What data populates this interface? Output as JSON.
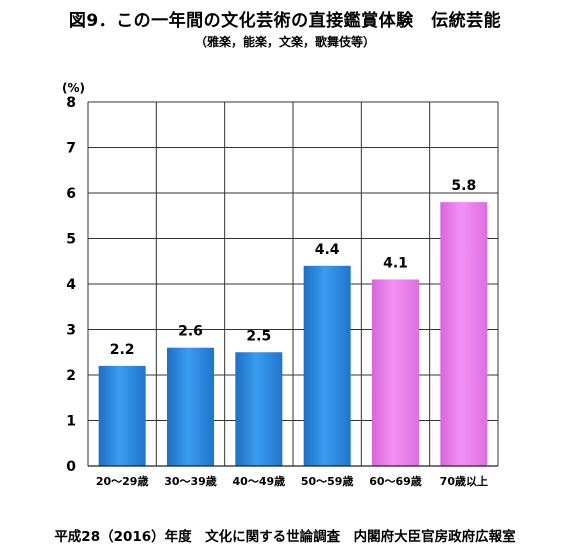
{
  "title": "図9．この一年間の文化芸術の直接鑑賞体験　伝統芸能",
  "subtitle": "（雅楽，能楽，文楽，歌舞伎等）",
  "footer": "平成28（2016）年度　文化に関する世論調査　内閣府大臣官房政府広報室",
  "chart_data": {
    "type": "bar",
    "title": "図9．この一年間の文化芸術の直接鑑賞体験　伝統芸能",
    "subtitle": "（雅楽，能楽，文楽，歌舞伎等）",
    "unit_label": "(%)",
    "categories": [
      "20～29歳",
      "30～39歳",
      "40～49歳",
      "50～59歳",
      "60～69歳",
      "70歳以上"
    ],
    "values": [
      2.2,
      2.6,
      2.5,
      4.4,
      4.1,
      5.8
    ],
    "data_labels": [
      "2.2",
      "2.6",
      "2.5",
      "4.4",
      "4.1",
      "5.8"
    ],
    "ylim": [
      0,
      8
    ],
    "yticks": [
      0,
      1,
      2,
      3,
      4,
      5,
      6,
      7,
      8
    ],
    "grid": true,
    "legend": "none",
    "colors": {
      "blue": "#2e8fe6",
      "pink": "#ef84ef",
      "bar_by_category": [
        "blue",
        "blue",
        "blue",
        "blue",
        "pink",
        "pink"
      ]
    }
  }
}
